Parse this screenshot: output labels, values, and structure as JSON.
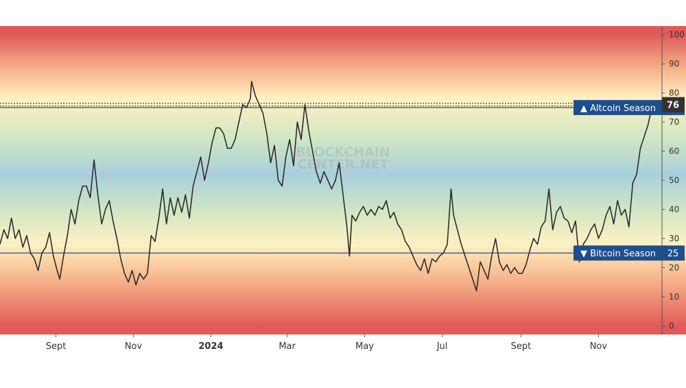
{
  "chart_data": {
    "type": "line",
    "ylim": [
      -3,
      103
    ],
    "y_ticks": [
      100,
      90,
      80,
      70,
      60,
      50,
      40,
      30,
      20,
      10,
      0
    ],
    "x_ticks": [
      "Sept",
      "Nov",
      "2024",
      "Mar",
      "May",
      "Jul",
      "Sept",
      "Nov"
    ],
    "x_tick_bold": [
      false,
      false,
      true,
      false,
      false,
      false,
      false,
      false
    ],
    "x_tick_dates": [
      "2023-09-01",
      "2023-11-01",
      "2024-01-01",
      "2024-03-01",
      "2024-05-01",
      "2024-07-01",
      "2024-09-01",
      "2024-11-01"
    ],
    "xlim": [
      "2023-07-19",
      "2024-12-21"
    ],
    "watermark": [
      "BLOCKCHAIN",
      "CENTER.NET"
    ],
    "thresholds": [
      {
        "label": "▲ Altcoin Season",
        "value": 75,
        "value_label": "75",
        "color": "#1f4e8c"
      },
      {
        "label": "▼ Bitcoin Season",
        "value": 25,
        "value_label": "25",
        "color": "#1f4e8c"
      }
    ],
    "current": {
      "value": 76,
      "label": "76"
    },
    "background_bands": [
      {
        "y": 100,
        "color": "#e05a5a"
      },
      {
        "y": 88,
        "color": "#f7b48a"
      },
      {
        "y": 78,
        "color": "#fef1c3"
      },
      {
        "y": 64,
        "color": "#cfe6c3"
      },
      {
        "y": 52,
        "color": "#a9cfdc"
      },
      {
        "y": 40,
        "color": "#cfe6c3"
      },
      {
        "y": 28,
        "color": "#fef1c3"
      },
      {
        "y": 16,
        "color": "#f7b48a"
      },
      {
        "y": 0,
        "color": "#e05a5a"
      }
    ],
    "line_color": "#2b2b2b",
    "series": [
      {
        "points": [
          [
            "2023-07-19",
            28
          ],
          [
            "2023-07-22",
            33
          ],
          [
            "2023-07-25",
            30
          ],
          [
            "2023-07-28",
            37
          ],
          [
            "2023-07-31",
            30
          ],
          [
            "2023-08-03",
            33
          ],
          [
            "2023-08-06",
            27
          ],
          [
            "2023-08-09",
            31
          ],
          [
            "2023-08-12",
            25
          ],
          [
            "2023-08-15",
            23
          ],
          [
            "2023-08-18",
            19
          ],
          [
            "2023-08-21",
            25
          ],
          [
            "2023-08-24",
            27
          ],
          [
            "2023-08-27",
            32
          ],
          [
            "2023-08-30",
            24
          ],
          [
            "2023-09-02",
            19
          ],
          [
            "2023-09-04",
            16
          ],
          [
            "2023-09-07",
            24
          ],
          [
            "2023-09-10",
            31
          ],
          [
            "2023-09-13",
            40
          ],
          [
            "2023-09-16",
            35
          ],
          [
            "2023-09-19",
            43
          ],
          [
            "2023-09-22",
            48
          ],
          [
            "2023-09-25",
            48
          ],
          [
            "2023-09-28",
            44
          ],
          [
            "2023-10-01",
            57
          ],
          [
            "2023-10-04",
            45
          ],
          [
            "2023-10-07",
            35
          ],
          [
            "2023-10-10",
            40
          ],
          [
            "2023-10-13",
            43
          ],
          [
            "2023-10-16",
            36
          ],
          [
            "2023-10-19",
            30
          ],
          [
            "2023-10-22",
            23
          ],
          [
            "2023-10-25",
            18
          ],
          [
            "2023-10-28",
            15
          ],
          [
            "2023-10-31",
            19
          ],
          [
            "2023-11-03",
            14
          ],
          [
            "2023-11-06",
            18
          ],
          [
            "2023-11-09",
            16
          ],
          [
            "2023-11-12",
            18
          ],
          [
            "2023-11-15",
            31
          ],
          [
            "2023-11-18",
            29
          ],
          [
            "2023-11-21",
            37
          ],
          [
            "2023-11-24",
            47
          ],
          [
            "2023-11-27",
            35
          ],
          [
            "2023-11-30",
            44
          ],
          [
            "2023-12-03",
            38
          ],
          [
            "2023-12-06",
            44
          ],
          [
            "2023-12-09",
            39
          ],
          [
            "2023-12-12",
            45
          ],
          [
            "2023-12-15",
            37
          ],
          [
            "2023-12-18",
            48
          ],
          [
            "2023-12-21",
            53
          ],
          [
            "2023-12-24",
            58
          ],
          [
            "2023-12-27",
            50
          ],
          [
            "2023-12-30",
            56
          ],
          [
            "2024-01-02",
            63
          ],
          [
            "2024-01-05",
            68
          ],
          [
            "2024-01-08",
            68
          ],
          [
            "2024-01-11",
            66
          ],
          [
            "2024-01-14",
            61
          ],
          [
            "2024-01-17",
            61
          ],
          [
            "2024-01-20",
            64
          ],
          [
            "2024-01-23",
            70
          ],
          [
            "2024-01-26",
            76
          ],
          [
            "2024-01-29",
            75
          ],
          [
            "2024-02-01",
            78
          ],
          [
            "2024-02-02",
            84
          ],
          [
            "2024-02-05",
            79
          ],
          [
            "2024-02-08",
            76
          ],
          [
            "2024-02-11",
            73
          ],
          [
            "2024-02-14",
            66
          ],
          [
            "2024-02-17",
            56
          ],
          [
            "2024-02-20",
            62
          ],
          [
            "2024-02-23",
            50
          ],
          [
            "2024-02-26",
            48
          ],
          [
            "2024-02-29",
            58
          ],
          [
            "2024-03-03",
            64
          ],
          [
            "2024-03-06",
            55
          ],
          [
            "2024-03-09",
            70
          ],
          [
            "2024-03-12",
            64
          ],
          [
            "2024-03-15",
            76
          ],
          [
            "2024-03-18",
            67
          ],
          [
            "2024-03-21",
            60
          ],
          [
            "2024-03-24",
            53
          ],
          [
            "2024-03-27",
            49
          ],
          [
            "2024-03-30",
            53
          ],
          [
            "2024-04-02",
            50
          ],
          [
            "2024-04-05",
            47
          ],
          [
            "2024-04-08",
            50
          ],
          [
            "2024-04-11",
            56
          ],
          [
            "2024-04-14",
            45
          ],
          [
            "2024-04-17",
            34
          ],
          [
            "2024-04-19",
            24
          ],
          [
            "2024-04-21",
            38
          ],
          [
            "2024-04-24",
            36
          ],
          [
            "2024-04-27",
            39
          ],
          [
            "2024-04-30",
            41
          ],
          [
            "2024-05-03",
            38
          ],
          [
            "2024-05-06",
            40
          ],
          [
            "2024-05-09",
            38
          ],
          [
            "2024-05-12",
            41
          ],
          [
            "2024-05-15",
            40
          ],
          [
            "2024-05-18",
            43
          ],
          [
            "2024-05-21",
            37
          ],
          [
            "2024-05-24",
            39
          ],
          [
            "2024-05-27",
            35
          ],
          [
            "2024-05-30",
            33
          ],
          [
            "2024-06-02",
            29
          ],
          [
            "2024-06-05",
            27
          ],
          [
            "2024-06-08",
            24
          ],
          [
            "2024-06-11",
            21
          ],
          [
            "2024-06-14",
            19
          ],
          [
            "2024-06-17",
            23
          ],
          [
            "2024-06-20",
            18
          ],
          [
            "2024-06-23",
            23
          ],
          [
            "2024-06-26",
            22
          ],
          [
            "2024-06-29",
            24
          ],
          [
            "2024-07-02",
            25
          ],
          [
            "2024-07-05",
            28
          ],
          [
            "2024-07-08",
            47
          ],
          [
            "2024-07-10",
            38
          ],
          [
            "2024-07-13",
            33
          ],
          [
            "2024-07-16",
            28
          ],
          [
            "2024-07-19",
            24
          ],
          [
            "2024-07-22",
            20
          ],
          [
            "2024-07-25",
            16
          ],
          [
            "2024-07-28",
            12
          ],
          [
            "2024-07-31",
            22
          ],
          [
            "2024-08-03",
            19
          ],
          [
            "2024-08-06",
            16
          ],
          [
            "2024-08-09",
            24
          ],
          [
            "2024-08-12",
            30
          ],
          [
            "2024-08-15",
            22
          ],
          [
            "2024-08-18",
            19
          ],
          [
            "2024-08-21",
            21
          ],
          [
            "2024-08-24",
            18
          ],
          [
            "2024-08-27",
            20
          ],
          [
            "2024-08-30",
            18
          ],
          [
            "2024-09-02",
            18
          ],
          [
            "2024-09-05",
            21
          ],
          [
            "2024-09-08",
            26
          ],
          [
            "2024-09-11",
            30
          ],
          [
            "2024-09-14",
            28
          ],
          [
            "2024-09-17",
            34
          ],
          [
            "2024-09-20",
            36
          ],
          [
            "2024-09-23",
            47
          ],
          [
            "2024-09-26",
            33
          ],
          [
            "2024-09-29",
            39
          ],
          [
            "2024-10-02",
            41
          ],
          [
            "2024-10-05",
            37
          ],
          [
            "2024-10-08",
            36
          ],
          [
            "2024-10-11",
            32
          ],
          [
            "2024-10-14",
            36
          ],
          [
            "2024-10-17",
            22
          ],
          [
            "2024-10-20",
            28
          ],
          [
            "2024-10-23",
            30
          ],
          [
            "2024-10-26",
            33
          ],
          [
            "2024-10-29",
            35
          ],
          [
            "2024-11-01",
            30
          ],
          [
            "2024-11-04",
            33
          ],
          [
            "2024-11-07",
            38
          ],
          [
            "2024-11-10",
            41
          ],
          [
            "2024-11-13",
            35
          ],
          [
            "2024-11-16",
            43
          ],
          [
            "2024-11-19",
            38
          ],
          [
            "2024-11-22",
            40
          ],
          [
            "2024-11-25",
            34
          ],
          [
            "2024-11-28",
            49
          ],
          [
            "2024-12-01",
            52
          ],
          [
            "2024-12-04",
            61
          ],
          [
            "2024-12-07",
            65
          ],
          [
            "2024-12-10",
            69
          ],
          [
            "2024-12-13",
            75
          ],
          [
            "2024-12-16",
            76
          ]
        ]
      }
    ]
  }
}
